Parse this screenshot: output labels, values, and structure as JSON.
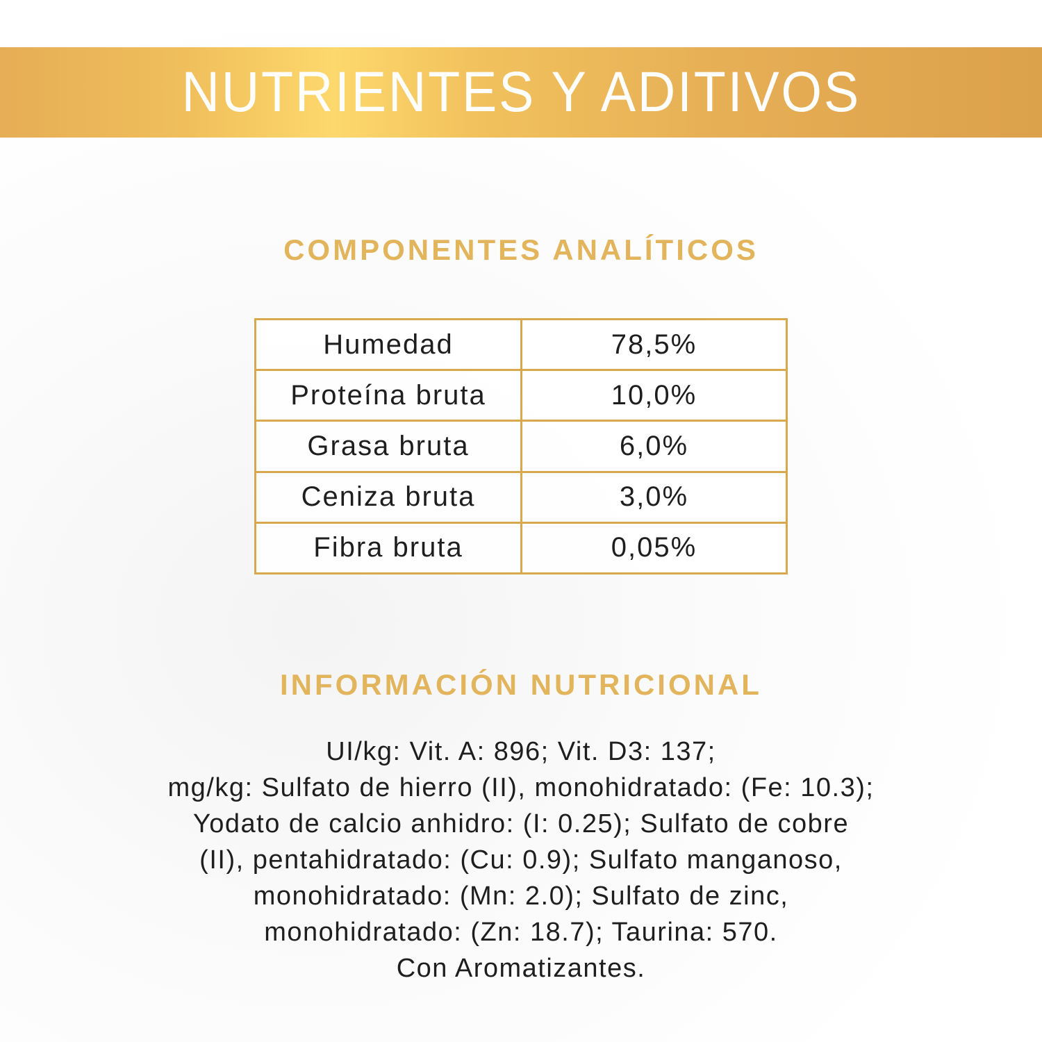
{
  "banner": {
    "title": "NUTRIENTES Y ADITIVOS",
    "color_start": "#e6ad55",
    "color_highlight": "#fdd86c",
    "color_end": "#dca14b"
  },
  "analytical": {
    "heading": "COMPONENTES ANALÍTICOS",
    "rows": [
      {
        "label": "Humedad",
        "value": "78,5%"
      },
      {
        "label": "Proteína bruta",
        "value": "10,0%"
      },
      {
        "label": "Grasa bruta",
        "value": "6,0%"
      },
      {
        "label": "Ceniza bruta",
        "value": "3,0%"
      },
      {
        "label": "Fibra bruta",
        "value": "0,05%"
      }
    ]
  },
  "nutritional": {
    "heading": "INFORMACIÓN NUTRICIONAL",
    "lines": [
      "UI/kg: Vit. A: 896; Vit. D3: 137;",
      "mg/kg: Sulfato de hierro (II), monohidratado: (Fe: 10.3);",
      "Yodato de calcio anhidro: (I: 0.25); Sulfato de cobre",
      "(II), pentahidratado: (Cu: 0.9); Sulfato manganoso,",
      "monohidratado: (Mn: 2.0); Sulfato de zinc,",
      "monohidratado: (Zn: 18.7); Taurina: 570.",
      "Con Aromatizantes."
    ]
  },
  "colors": {
    "gold_text": "#e2b55c",
    "table_border": "#d8a84c"
  }
}
